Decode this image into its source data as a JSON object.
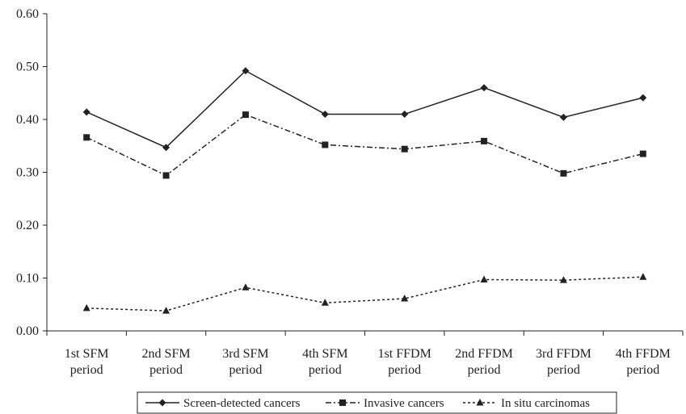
{
  "chart_data": {
    "type": "line",
    "categories": [
      [
        "1st SFM",
        "period"
      ],
      [
        "2nd SFM",
        "period"
      ],
      [
        "3rd SFM",
        "period"
      ],
      [
        "4th SFM",
        "period"
      ],
      [
        "1st FFDM",
        "period"
      ],
      [
        "2nd FFDM",
        "period"
      ],
      [
        "3rd FFDM",
        "period"
      ],
      [
        "4th FFDM",
        "period"
      ]
    ],
    "y_ticks": [
      "0.00",
      "0.10",
      "0.20",
      "0.30",
      "0.40",
      "0.50",
      "0.60"
    ],
    "ylim": [
      0,
      0.6
    ],
    "grid": false,
    "legend_position": "bottom",
    "series": [
      {
        "name": "Screen-detected cancers",
        "marker": "diamond",
        "line_style": "solid",
        "color": "#222222",
        "values": [
          0.414,
          0.347,
          0.492,
          0.41,
          0.41,
          0.46,
          0.404,
          0.441
        ]
      },
      {
        "name": "Invasive cancers",
        "marker": "square",
        "line_style": "dash-dot",
        "color": "#222222",
        "values": [
          0.366,
          0.294,
          0.409,
          0.352,
          0.344,
          0.359,
          0.298,
          0.335
        ]
      },
      {
        "name": "In situ carcinomas",
        "marker": "triangle",
        "line_style": "dotted",
        "color": "#222222",
        "values": [
          0.043,
          0.038,
          0.082,
          0.053,
          0.061,
          0.097,
          0.096,
          0.102
        ]
      }
    ]
  }
}
